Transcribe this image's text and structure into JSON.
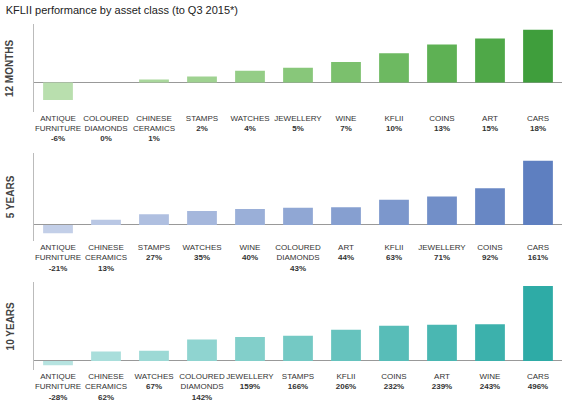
{
  "title": "KFLII performance by asset class (to Q3 2015*)",
  "chart_data": [
    {
      "type": "bar",
      "title": "12 MONTHS",
      "categories": [
        "ANTIQUE FURNITURE",
        "COLOURED DIAMONDS",
        "CHINESE CERAMICS",
        "STAMPS",
        "WATCHES",
        "JEWELLERY",
        "WINE",
        "KFLII",
        "COINS",
        "ART",
        "CARS"
      ],
      "values": [
        -6,
        0,
        1,
        2,
        4,
        5,
        7,
        10,
        13,
        15,
        18
      ],
      "value_labels": [
        "-6%",
        "0%",
        "1%",
        "2%",
        "4%",
        "5%",
        "7%",
        "10%",
        "13%",
        "15%",
        "18%"
      ],
      "colors": [
        "#b9dfae",
        "#b3dca7",
        "#a9d79c",
        "#9fd291",
        "#94cd86",
        "#88c77a",
        "#7bc06d",
        "#6db961",
        "#5eb154",
        "#4fa848",
        "#3f9e3c"
      ],
      "ylim": [
        -10,
        20
      ],
      "yticks": [
        0
      ],
      "grid": true,
      "data_labels": true,
      "tick_labels": "x"
    },
    {
      "type": "bar",
      "title": "5 YEARS",
      "categories": [
        "ANTIQUE FURNITURE",
        "CHINESE CERAMICS",
        "STAMPS",
        "WATCHES",
        "WINE",
        "COLOURED DIAMONDS",
        "ART",
        "KFLII",
        "JEWELLERY",
        "COINS",
        "CARS"
      ],
      "values": [
        -21,
        13,
        27,
        35,
        40,
        43,
        44,
        63,
        71,
        92,
        161
      ],
      "value_labels": [
        "-21%",
        "13%",
        "27%",
        "35%",
        "40%",
        "43%",
        "44%",
        "63%",
        "71%",
        "92%",
        "161%"
      ],
      "colors": [
        "#c3cfe8",
        "#b9c7e4",
        "#afbfe0",
        "#a5b7dc",
        "#9aafd8",
        "#90a7d4",
        "#869fd0",
        "#7c97cc",
        "#728fc8",
        "#6887c4",
        "#5e7fc0"
      ],
      "ylim": [
        -40,
        180
      ],
      "yticks": [
        0
      ],
      "grid": true,
      "data_labels": true,
      "tick_labels": "x"
    },
    {
      "type": "bar",
      "title": "10 YEARS",
      "categories": [
        "ANTIQUE FURNITURE",
        "CHINESE CERAMICS",
        "WATCHES",
        "COLOURED DIAMONDS",
        "JEWELLERY",
        "STAMPS",
        "KFLII",
        "COINS",
        "ART",
        "WINE",
        "CARS"
      ],
      "values": [
        -28,
        62,
        67,
        142,
        159,
        166,
        206,
        232,
        239,
        243,
        496
      ],
      "value_labels": [
        "-28%",
        "62%",
        "67%",
        "142%",
        "159%",
        "166%",
        "206%",
        "232%",
        "239%",
        "243%",
        "496%"
      ],
      "colors": [
        "#b6e3e0",
        "#a9dedb",
        "#9cd9d5",
        "#8fd4d0",
        "#82cfca",
        "#74c9c4",
        "#66c3be",
        "#58bdb8",
        "#4ab7b2",
        "#3cb1ac",
        "#2eaba6"
      ],
      "ylim": [
        -60,
        520
      ],
      "yticks": [
        0
      ],
      "grid": true,
      "data_labels": true,
      "tick_labels": "x"
    }
  ]
}
